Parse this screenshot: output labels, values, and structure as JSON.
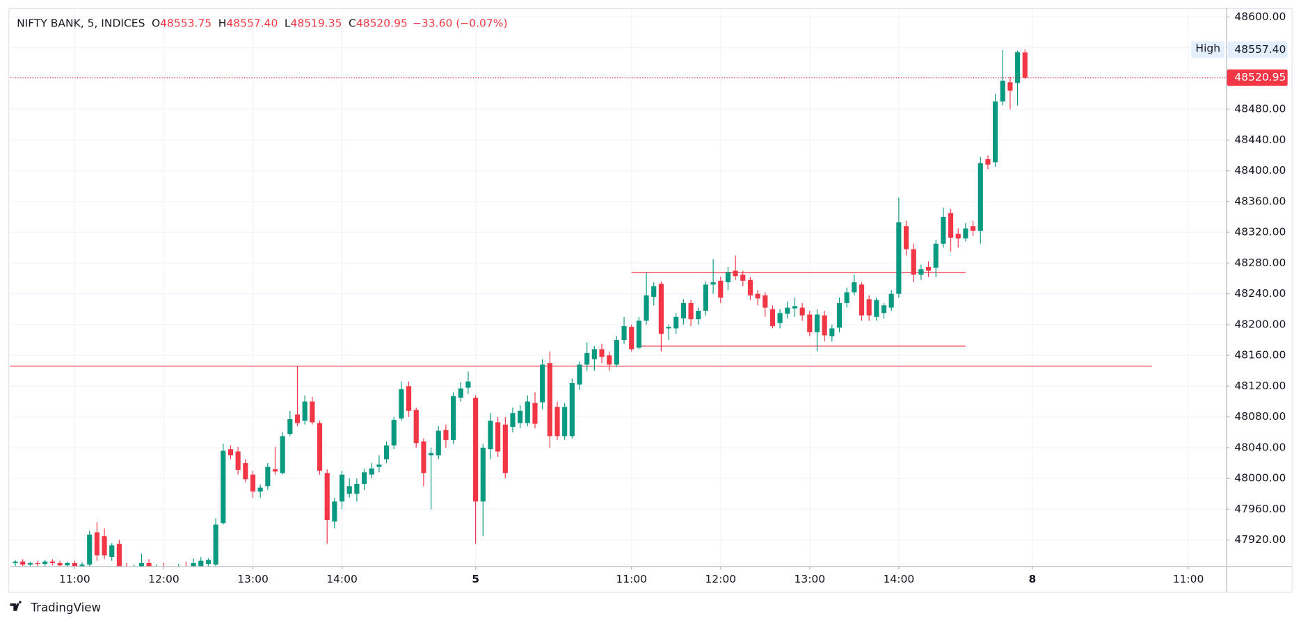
{
  "chart_data": {
    "type": "candlestick",
    "title": "NIFTY BANK, 5, INDICES",
    "ohlc_legend": [
      {
        "label": "O",
        "value": "48553.75"
      },
      {
        "label": "H",
        "value": "48557.40"
      },
      {
        "label": "L",
        "value": "48519.35"
      },
      {
        "label": "C",
        "value": "48520.95"
      }
    ],
    "change": "−33.60 (−0.07%)",
    "high_tag": {
      "label": "High",
      "value": "48557.40"
    },
    "last_price_label": "48520.95",
    "branding": "TradingView",
    "up_color": "#089981",
    "down_color": "#f23645",
    "xlim": [
      -0.7,
      163.1
    ],
    "xticks": [
      {
        "value": 8,
        "label": "11:00"
      },
      {
        "value": 20,
        "label": "12:00"
      },
      {
        "value": 32,
        "label": "13:00"
      },
      {
        "value": 44,
        "label": "14:00"
      },
      {
        "value": 62,
        "label": "5"
      },
      {
        "value": 83,
        "label": "11:00"
      },
      {
        "value": 95,
        "label": "12:00"
      },
      {
        "value": 107,
        "label": "13:00"
      },
      {
        "value": 119,
        "label": "14:00"
      },
      {
        "value": 137,
        "label": "8"
      },
      {
        "value": 158,
        "label": "11:00"
      }
    ],
    "ylim": [
      47886,
      48609
    ],
    "yticks": [
      {
        "value": 47920,
        "label": "47920.00"
      },
      {
        "value": 47960,
        "label": "47960.00"
      },
      {
        "value": 48000,
        "label": "48000.00"
      },
      {
        "value": 48040,
        "label": "48040.00"
      },
      {
        "value": 48080,
        "label": "48080.00"
      },
      {
        "value": 48120,
        "label": "48120.00"
      },
      {
        "value": 48160,
        "label": "48160.00"
      },
      {
        "value": 48200,
        "label": "48200.00"
      },
      {
        "value": 48240,
        "label": "48240.00"
      },
      {
        "value": 48280,
        "label": "48280.00"
      },
      {
        "value": 48320,
        "label": "48320.00"
      },
      {
        "value": 48360,
        "label": "48360.00"
      },
      {
        "value": 48400,
        "label": "48400.00"
      },
      {
        "value": 48440,
        "label": "48440.00"
      },
      {
        "value": 48480,
        "label": "48480.00"
      },
      {
        "value": 48520,
        "label": "48520.00"
      },
      {
        "value": 48560,
        "label": "48560.00"
      },
      {
        "value": 48600,
        "label": "48600.00"
      }
    ],
    "grid": true,
    "drawings": [
      {
        "value": 48146,
        "start": -0.7,
        "end": 153.1
      },
      {
        "value": 48268,
        "start": 83,
        "end": 128
      },
      {
        "value": 48172,
        "start": 84.1,
        "end": 128
      }
    ],
    "open": [
      47890,
      47892,
      47888,
      47890,
      47889,
      47892,
      47890,
      47887,
      47890,
      47886,
      47888,
      47930,
      47925,
      47898,
      47915,
      47884,
      47880,
      47885,
      47890,
      47882,
      47884,
      47881,
      47883,
      47886,
      47884,
      47886,
      47889,
      47888,
      47942,
      48038,
      48035,
      48020,
      48005,
      47983,
      47990,
      48012,
      48007,
      48058,
      48083,
      48075,
      48100,
      48072,
      48007,
      47944,
      47970,
      47980,
      47980,
      47993,
      48005,
      48015,
      48025,
      48043,
      48078,
      48120,
      48089,
      48048,
      48030,
      48030,
      48063,
      48050,
      48105,
      48118,
      48105,
      47970,
      48038,
      48073,
      48070,
      48067,
      48072,
      48072,
      48098,
      48099,
      48150,
      48093,
      48055,
      48055,
      48122,
      48148,
      48155,
      48168,
      48160,
      48148,
      48180,
      48197,
      48170,
      48205,
      48236,
      48253,
      48195,
      48195,
      48208,
      48228,
      48207,
      48218,
      48252,
      48257,
      48255,
      48270,
      48265,
      48258,
      48240,
      48238,
      48220,
      48202,
      48214,
      48221,
      48222,
      48213,
      48190,
      48212,
      48185,
      48196,
      48228,
      48242,
      48252,
      48233,
      48210,
      48215,
      48222,
      48240,
      48328,
      48298,
      48265,
      48275,
      48274,
      48305,
      48345,
      48318,
      48312,
      48328,
      48322,
      48415,
      48411,
      48490,
      48515,
      48514,
      48553.75
    ],
    "high": [
      47894,
      47895,
      47892,
      47893,
      47894,
      47895,
      47893,
      47892,
      47893,
      47891,
      47932,
      47943,
      47935,
      47916,
      47920,
      47890,
      47888,
      47902,
      47895,
      47888,
      47890,
      47886,
      47889,
      47892,
      47896,
      47898,
      47896,
      47948,
      48045,
      48043,
      48041,
      48025,
      48010,
      47992,
      48020,
      48041,
      48060,
      48088,
      48146,
      48108,
      48106,
      48075,
      48012,
      47975,
      48010,
      48000,
      48000,
      48012,
      48020,
      48030,
      48048,
      48080,
      48126,
      48126,
      48092,
      48052,
      48040,
      48068,
      48070,
      48112,
      48125,
      48139,
      48108,
      48045,
      48085,
      48080,
      48080,
      48092,
      48095,
      48108,
      48112,
      48155,
      48165,
      48100,
      48098,
      48130,
      48152,
      48177,
      48172,
      48175,
      48165,
      48185,
      48210,
      48200,
      48210,
      48267,
      48255,
      48256,
      48200,
      48215,
      48233,
      48232,
      48222,
      48256,
      48285,
      48262,
      48275,
      48290,
      48270,
      48262,
      48245,
      48242,
      48225,
      48220,
      48230,
      48235,
      48228,
      48218,
      48220,
      48218,
      48200,
      48235,
      48248,
      48265,
      48255,
      48238,
      48235,
      48228,
      48245,
      48365,
      48335,
      48305,
      48278,
      48282,
      48310,
      48352,
      48350,
      48325,
      48332,
      48335,
      48418,
      48420,
      48500,
      48557,
      48522,
      48556,
      48557.4
    ],
    "low": [
      47884,
      47886,
      47884,
      47886,
      47885,
      47887,
      47884,
      47883,
      47884,
      47880,
      47886,
      47893,
      47895,
      47893,
      47880,
      47875,
      47872,
      47880,
      47878,
      47875,
      47878,
      47874,
      47877,
      47881,
      47880,
      47882,
      47884,
      47885,
      47940,
      48025,
      48005,
      47995,
      47975,
      47975,
      47985,
      48005,
      48005,
      48055,
      48068,
      48070,
      48070,
      48005,
      47915,
      47935,
      47960,
      47975,
      47970,
      47985,
      48000,
      48008,
      48020,
      48038,
      48075,
      48080,
      48040,
      47990,
      47960,
      48025,
      48040,
      48045,
      48100,
      48110,
      47915,
      47925,
      48025,
      48028,
      48000,
      48060,
      48065,
      48068,
      48065,
      48090,
      48040,
      48050,
      48050,
      48052,
      48115,
      48140,
      48140,
      48150,
      48140,
      48145,
      48175,
      48165,
      48168,
      48200,
      48225,
      48165,
      48180,
      48188,
      48200,
      48198,
      48200,
      48212,
      48240,
      48228,
      48245,
      48258,
      48250,
      48232,
      48225,
      48210,
      48195,
      48195,
      48208,
      48210,
      48205,
      48185,
      48165,
      48178,
      48178,
      48190,
      48222,
      48238,
      48205,
      48205,
      48205,
      48208,
      48218,
      48235,
      48290,
      48255,
      48258,
      48262,
      48262,
      48300,
      48295,
      48300,
      48308,
      48315,
      48305,
      48402,
      48405,
      48485,
      48480,
      48485,
      48519.35
    ],
    "close": [
      47892,
      47888,
      47890,
      47889,
      47892,
      47890,
      47887,
      47890,
      47886,
      47888,
      47927,
      47900,
      47900,
      47913,
      47884,
      47880,
      47885,
      47890,
      47882,
      47884,
      47881,
      47883,
      47886,
      47884,
      47890,
      47893,
      47894,
      47940,
      48036,
      48030,
      48011,
      47999,
      47983,
      47988,
      48015,
      48009,
      48055,
      48077,
      48072,
      48100,
      48073,
      48010,
      47946,
      47970,
      48005,
      47990,
      47993,
      48008,
      48013,
      48018,
      48043,
      48076,
      48116,
      48088,
      48046,
      48007,
      48033,
      48062,
      48050,
      48107,
      48117,
      48126,
      47970,
      48040,
      48075,
      48035,
      48007,
      48085,
      48088,
      48100,
      48071,
      48148,
      48055,
      48055,
      48093,
      48124,
      48148,
      48163,
      48168,
      48158,
      48148,
      48180,
      48198,
      48168,
      48205,
      48238,
      48250,
      48188,
      48197,
      48210,
      48228,
      48207,
      48218,
      48252,
      48255,
      48235,
      48268,
      48263,
      48257,
      48238,
      48234,
      48222,
      48198,
      48215,
      48222,
      48224,
      48212,
      48190,
      48213,
      48186,
      48195,
      48228,
      48242,
      48255,
      48212,
      48212,
      48232,
      48225,
      48240,
      48333,
      48298,
      48265,
      48272,
      48270,
      48305,
      48340,
      48313,
      48312,
      48325,
      48322,
      48410,
      48408,
      48490,
      48517,
      48504,
      48554,
      48520.95
    ]
  }
}
